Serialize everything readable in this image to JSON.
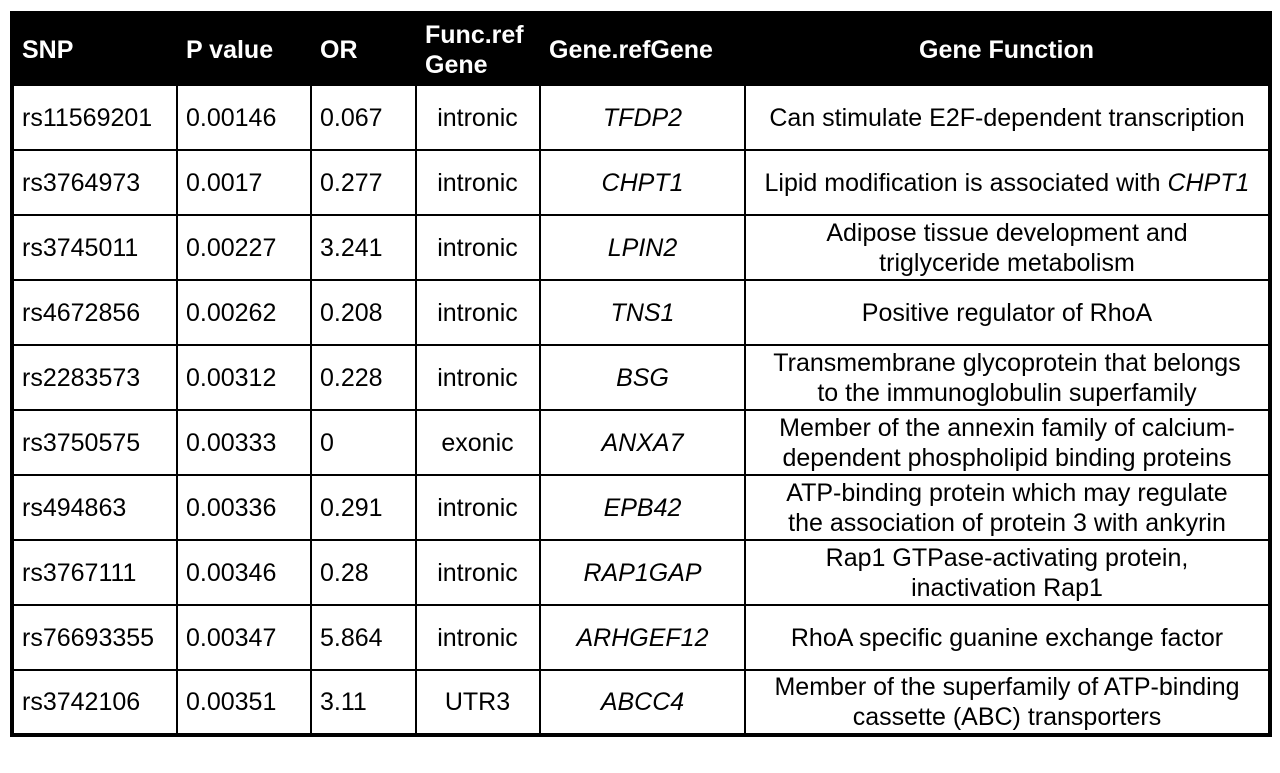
{
  "table": {
    "title": "SNP association results table",
    "colors": {
      "header_bg": "#000000",
      "header_text": "#ffffff",
      "border": "#000000",
      "body_text": "#000000",
      "background": "#ffffff"
    },
    "columns": [
      {
        "id": "snp",
        "label_lines": [
          "SNP"
        ],
        "align": "left"
      },
      {
        "id": "p-value",
        "label_lines": [
          "P value"
        ],
        "align": "left"
      },
      {
        "id": "or",
        "label_lines": [
          "OR"
        ],
        "align": "left"
      },
      {
        "id": "func-refgene",
        "label_lines": [
          "Func.ref",
          "Gene"
        ],
        "align": "left"
      },
      {
        "id": "gene-refgene",
        "label_lines": [
          "Gene.refGene"
        ],
        "align": "left"
      },
      {
        "id": "gene-function",
        "label_lines": [
          "Gene Function"
        ],
        "align": "center"
      }
    ],
    "rows": [
      {
        "snp": "rs11569201",
        "p_value": "0.00146",
        "or": "0.067",
        "func_refgene": "intronic",
        "gene_refgene": "TFDP2",
        "gene_function_lines": [
          [
            "Can stimulate E2F-dependent transcription"
          ]
        ]
      },
      {
        "snp": "rs3764973",
        "p_value": "0.0017",
        "or": "0.277",
        "func_refgene": "intronic",
        "gene_refgene": "CHPT1",
        "gene_function_lines": [
          [
            "Lipid modification is associated with ",
            {
              "italic": "CHPT1"
            }
          ]
        ]
      },
      {
        "snp": "rs3745011",
        "p_value": "0.00227",
        "or": "3.241",
        "func_refgene": "intronic",
        "gene_refgene": "LPIN2",
        "gene_function_lines": [
          [
            "Adipose tissue development and"
          ],
          [
            "triglyceride metabolism"
          ]
        ]
      },
      {
        "snp": "rs4672856",
        "p_value": "0.00262",
        "or": "0.208",
        "func_refgene": "intronic",
        "gene_refgene": "TNS1",
        "gene_function_lines": [
          [
            "Positive regulator of RhoA"
          ]
        ]
      },
      {
        "snp": "rs2283573",
        "p_value": "0.00312",
        "or": "0.228",
        "func_refgene": "intronic",
        "gene_refgene": "BSG",
        "gene_function_lines": [
          [
            "Transmembrane glycoprotein that belongs"
          ],
          [
            "to the immunoglobulin superfamily"
          ]
        ]
      },
      {
        "snp": "rs3750575",
        "p_value": "0.00333",
        "or": "0",
        "func_refgene": "exonic",
        "gene_refgene": "ANXA7",
        "gene_function_lines": [
          [
            "Member of the annexin family of calcium-"
          ],
          [
            "dependent phospholipid binding proteins"
          ]
        ]
      },
      {
        "snp": "rs494863",
        "p_value": "0.00336",
        "or": "0.291",
        "func_refgene": "intronic",
        "gene_refgene": "EPB42",
        "gene_function_lines": [
          [
            "ATP-binding protein which may regulate"
          ],
          [
            "the association of protein 3 with ankyrin"
          ]
        ]
      },
      {
        "snp": "rs3767111",
        "p_value": "0.00346",
        "or": "0.28",
        "func_refgene": "intronic",
        "gene_refgene": "RAP1GAP",
        "gene_function_lines": [
          [
            "Rap1 GTPase-activating protein,"
          ],
          [
            "inactivation Rap1"
          ]
        ]
      },
      {
        "snp": "rs76693355",
        "p_value": "0.00347",
        "or": "5.864",
        "func_refgene": "intronic",
        "gene_refgene": "ARHGEF12",
        "gene_function_lines": [
          [
            "RhoA specific guanine exchange factor"
          ]
        ]
      },
      {
        "snp": "rs3742106",
        "p_value": "0.00351",
        "or": "3.11",
        "func_refgene": "UTR3",
        "gene_refgene": "ABCC4",
        "gene_function_lines": [
          [
            "Member of the superfamily of ATP-binding"
          ],
          [
            "cassette (ABC) transporters"
          ]
        ]
      }
    ]
  }
}
